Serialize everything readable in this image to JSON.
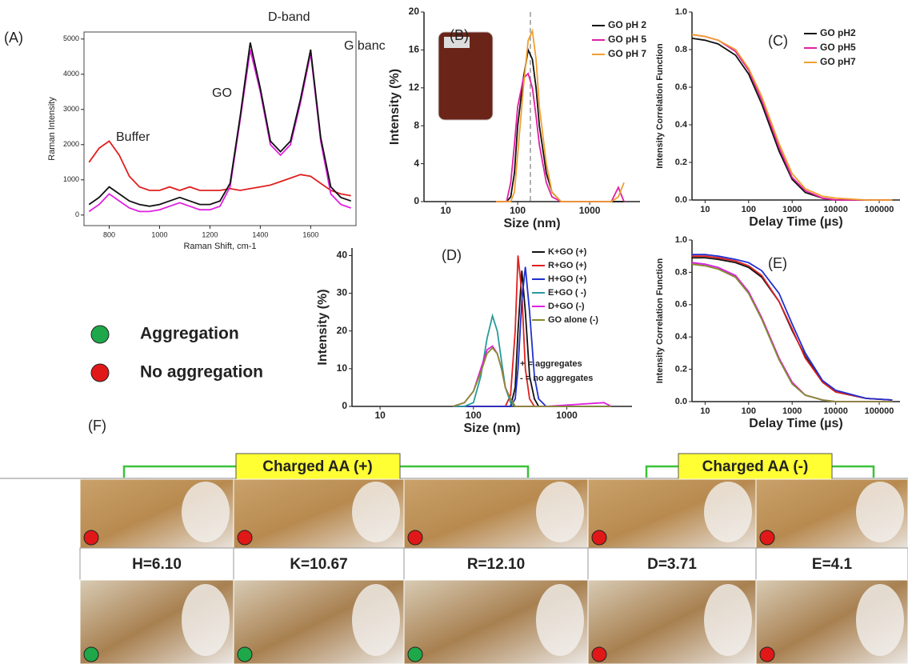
{
  "chart_data": [
    {
      "type": "line",
      "label": "(A)",
      "xlabel": "Raman Shift, cm-1",
      "ylabel": "Raman Intensity",
      "annotations": [
        "D-band",
        "G banc",
        "GO",
        "Buffer"
      ],
      "x": [
        720,
        760,
        800,
        840,
        880,
        920,
        960,
        1000,
        1040,
        1080,
        1120,
        1160,
        1200,
        1240,
        1280,
        1320,
        1360,
        1400,
        1440,
        1480,
        1520,
        1560,
        1600,
        1640,
        1680,
        1720,
        1760
      ],
      "series": [
        {
          "color": "#e02020",
          "values": [
            1500,
            1900,
            2100,
            1700,
            1100,
            800,
            700,
            700,
            800,
            700,
            800,
            700,
            700,
            700,
            750,
            700,
            750,
            800,
            850,
            950,
            1050,
            1150,
            1100,
            900,
            700,
            600,
            550
          ]
        },
        {
          "color": "#e020e0",
          "values": [
            100,
            300,
            600,
            400,
            200,
            100,
            100,
            150,
            250,
            350,
            250,
            150,
            150,
            250,
            800,
            2700,
            4700,
            3500,
            2000,
            1700,
            2000,
            3200,
            4600,
            2100,
            600,
            300,
            200
          ]
        },
        {
          "color": "#111111",
          "values": [
            300,
            500,
            800,
            600,
            400,
            300,
            250,
            300,
            400,
            500,
            400,
            300,
            300,
            400,
            900,
            2800,
            4900,
            3600,
            2100,
            1800,
            2100,
            3300,
            4700,
            2200,
            800,
            500,
            400
          ]
        }
      ],
      "xlim": [
        700,
        1780
      ],
      "ylim": [
        -300,
        5200
      ],
      "xticks": [
        800,
        1000,
        1200,
        1400,
        1600
      ],
      "yticks": [
        0,
        1000,
        2000,
        3000,
        4000,
        5000
      ]
    },
    {
      "type": "line",
      "label": "(B)",
      "xlabel": "Size (nm)",
      "ylabel": "Intensity (%)",
      "xscale": "log",
      "legend": "upper right",
      "vline": 150,
      "x": [
        50,
        60,
        70,
        80,
        90,
        100,
        120,
        140,
        160,
        180,
        200,
        250,
        300,
        400,
        2000,
        2500,
        3000
      ],
      "series": [
        {
          "name": "GO pH 2",
          "color": "#111111",
          "values": [
            0,
            0,
            0,
            0.5,
            3,
            8,
            13,
            16,
            15,
            12,
            8,
            3,
            1,
            0,
            0,
            0,
            0
          ]
        },
        {
          "name": "GO pH 5",
          "color": "#e020a0",
          "values": [
            0,
            0,
            0,
            2,
            6,
            10,
            13,
            13.5,
            12,
            9,
            6,
            2,
            0.5,
            0,
            0,
            1.5,
            0
          ]
        },
        {
          "name": "GO pH 7",
          "color": "#f0a030",
          "values": [
            0,
            0,
            0,
            0,
            1,
            5,
            12,
            17,
            18,
            15,
            10,
            4,
            1,
            0,
            0,
            0.5,
            2
          ]
        }
      ],
      "xlim": [
        5,
        5000
      ],
      "ylim": [
        0,
        20
      ],
      "xticks": [
        10,
        100,
        1000
      ],
      "yticks": [
        0,
        4,
        8,
        12,
        16,
        20
      ]
    },
    {
      "type": "line",
      "label": "(C)",
      "xlabel": "Delay Time (µs)",
      "ylabel": "Intensity Correlation Function",
      "xscale": "log",
      "legend": "upper right",
      "x": [
        5,
        10,
        20,
        50,
        100,
        200,
        500,
        1000,
        2000,
        5000,
        10000,
        50000,
        200000
      ],
      "series": [
        {
          "name": "GO pH2",
          "color": "#111111",
          "values": [
            0.86,
            0.85,
            0.83,
            0.77,
            0.67,
            0.51,
            0.26,
            0.11,
            0.04,
            0.01,
            0,
            0,
            0
          ]
        },
        {
          "name": "GO pH5",
          "color": "#e020a0",
          "values": [
            0.88,
            0.87,
            0.85,
            0.79,
            0.69,
            0.53,
            0.28,
            0.12,
            0.05,
            0.01,
            0,
            0,
            0
          ]
        },
        {
          "name": "GO pH7",
          "color": "#f0a030",
          "values": [
            0.88,
            0.87,
            0.85,
            0.8,
            0.7,
            0.55,
            0.3,
            0.14,
            0.06,
            0.02,
            0.01,
            0,
            0
          ]
        }
      ],
      "xlim": [
        5,
        300000
      ],
      "ylim": [
        0,
        1
      ],
      "xticks": [
        10,
        100,
        1000,
        10000,
        100000
      ],
      "yticks": [
        {
          "value": 0,
          "label": "0.0"
        },
        0.2,
        0.4,
        0.6,
        0.8,
        {
          "value": 1,
          "label": "1.0"
        }
      ]
    },
    {
      "type": "line",
      "label": "(D)",
      "xlabel": "Size (nm)",
      "ylabel": "Intensity (%)",
      "xscale": "log",
      "legend": "upper right",
      "annotations": [
        "+ = aggregates",
        "- = no aggregates"
      ],
      "x": [
        60,
        80,
        100,
        120,
        140,
        160,
        180,
        200,
        220,
        250,
        280,
        300,
        330,
        360,
        400,
        450,
        500,
        600,
        2500,
        3000
      ],
      "series": [
        {
          "name": "K+GO (+)",
          "color": "#111111",
          "values": [
            0,
            0,
            0,
            0,
            0,
            0,
            0,
            0,
            0,
            0,
            5,
            20,
            36,
            25,
            8,
            2,
            0,
            0,
            0,
            0
          ]
        },
        {
          "name": "R+GO (+)",
          "color": "#e02020",
          "values": [
            0,
            0,
            0,
            0,
            0,
            0,
            0,
            0,
            0,
            3,
            20,
            40,
            30,
            10,
            2,
            0,
            0,
            0,
            0,
            0
          ]
        },
        {
          "name": "H+GO (+)",
          "color": "#2030d0",
          "values": [
            0,
            0,
            0,
            0,
            0,
            0,
            0,
            0,
            0,
            0,
            2,
            10,
            28,
            37,
            25,
            8,
            2,
            0,
            0,
            0
          ]
        },
        {
          "name": "E+GO ( -)",
          "color": "#2a9a9a",
          "values": [
            0,
            0,
            1,
            8,
            18,
            24,
            20,
            12,
            5,
            1,
            0,
            0,
            0,
            0,
            0,
            0,
            0,
            0,
            0,
            0
          ]
        },
        {
          "name": "D+GO (-)",
          "color": "#e020e0",
          "values": [
            0,
            1,
            4,
            10,
            15,
            16,
            14,
            10,
            5,
            2,
            0,
            0,
            0,
            0,
            0,
            0,
            0,
            0,
            1,
            0
          ]
        },
        {
          "name": "GO alone (-)",
          "color": "#8a8a30",
          "values": [
            0,
            1,
            4,
            9,
            14,
            15.5,
            14,
            10,
            5,
            2,
            0,
            0,
            0,
            0,
            0,
            0,
            0,
            0,
            0,
            0
          ]
        }
      ],
      "xlim": [
        5,
        5000
      ],
      "ylim": [
        0,
        42
      ],
      "xticks": [
        10,
        100,
        1000
      ],
      "yticks": [
        0,
        10,
        20,
        30,
        40
      ]
    },
    {
      "type": "line",
      "label": "(E)",
      "xlabel": "Delay Time (µs)",
      "ylabel": "Intensity Correlation Function",
      "xscale": "log",
      "x": [
        5,
        10,
        20,
        50,
        100,
        200,
        500,
        1000,
        2000,
        5000,
        10000,
        50000,
        200000
      ],
      "series": [
        {
          "color": "#2a9a9a",
          "values": [
            0.86,
            0.85,
            0.83,
            0.77,
            0.67,
            0.51,
            0.26,
            0.11,
            0.04,
            0.01,
            0,
            0,
            0
          ]
        },
        {
          "color": "#e020e0",
          "values": [
            0.86,
            0.85,
            0.83,
            0.78,
            0.68,
            0.52,
            0.27,
            0.12,
            0.04,
            0.01,
            0,
            0,
            0
          ]
        },
        {
          "color": "#8a8a30",
          "values": [
            0.85,
            0.84,
            0.82,
            0.77,
            0.67,
            0.51,
            0.26,
            0.11,
            0.04,
            0.01,
            0,
            0,
            0
          ]
        },
        {
          "color": "#111111",
          "values": [
            0.89,
            0.89,
            0.88,
            0.86,
            0.83,
            0.77,
            0.62,
            0.44,
            0.28,
            0.12,
            0.06,
            0.02,
            0.01
          ]
        },
        {
          "color": "#e02020",
          "values": [
            0.9,
            0.9,
            0.89,
            0.87,
            0.84,
            0.78,
            0.62,
            0.45,
            0.27,
            0.12,
            0.06,
            0.02,
            0.01
          ]
        },
        {
          "color": "#2030d0",
          "values": [
            0.91,
            0.91,
            0.9,
            0.88,
            0.86,
            0.81,
            0.67,
            0.48,
            0.3,
            0.13,
            0.07,
            0.02,
            0.01
          ]
        }
      ],
      "xlim": [
        5,
        300000
      ],
      "ylim": [
        0,
        1
      ],
      "xticks": [
        10,
        100,
        1000,
        10000,
        100000
      ],
      "yticks": [
        {
          "value": 0,
          "label": "0.0"
        },
        0.2,
        0.4,
        0.6,
        0.8,
        {
          "value": 1,
          "label": "1.0"
        }
      ]
    }
  ],
  "key": [
    "Aggregation",
    "No aggregation"
  ],
  "panel_f": {
    "label": "(F)",
    "groups": [
      "Charged AA (+)",
      "Charged AA (-)"
    ],
    "samples": [
      "H=6.10",
      "K=10.67",
      "R=12.10",
      "D=3.71",
      "E=4.1"
    ]
  }
}
